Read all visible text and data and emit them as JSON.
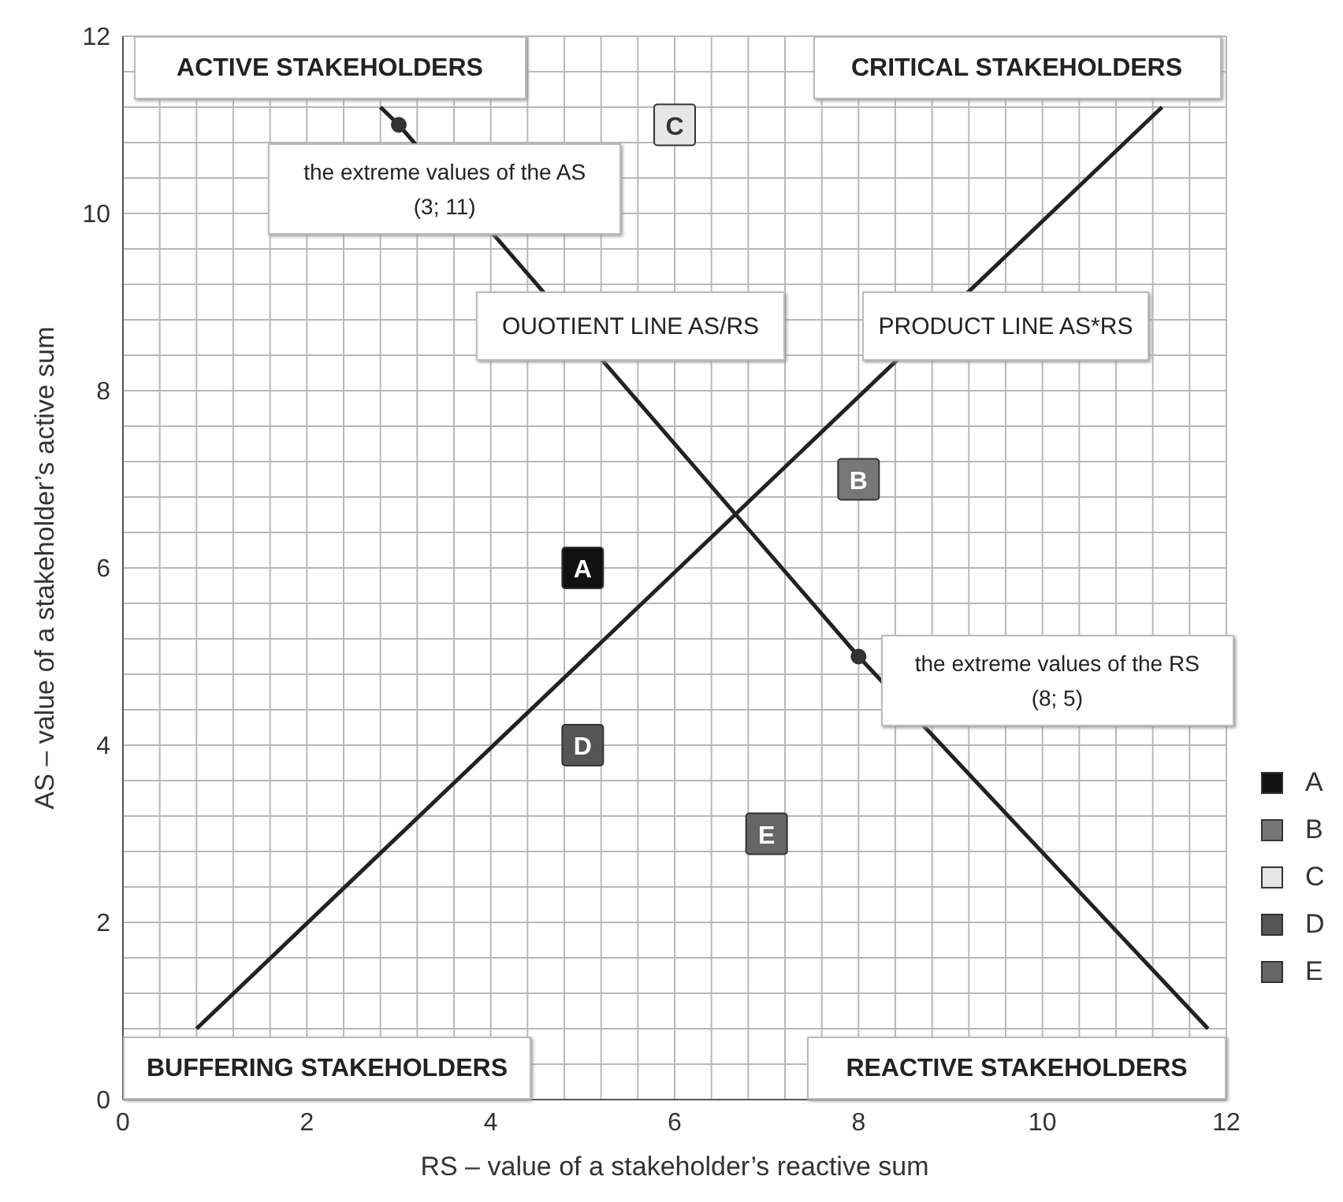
{
  "chart_data": {
    "type": "scatter",
    "xlabel": "RS – value of a stakeholder’s reactive sum",
    "ylabel": "AS – value of a stakeholder’s active sum",
    "xlim": [
      0,
      12
    ],
    "ylim": [
      0,
      12
    ],
    "xticks": [
      0,
      {
        "value": 0.4,
        "label": null
      },
      {
        "value": 0.8,
        "label": null
      },
      {
        "value": 1.2,
        "label": null
      },
      {
        "value": 1.6,
        "label": null
      },
      2,
      {
        "value": 2.4,
        "label": null
      },
      {
        "value": 2.8,
        "label": null
      },
      {
        "value": 3.2,
        "label": null
      },
      {
        "value": 3.6,
        "label": null
      },
      4,
      {
        "value": 4.4,
        "label": null
      },
      {
        "value": 4.8,
        "label": null
      },
      {
        "value": 5.2,
        "label": null
      },
      {
        "value": 5.6,
        "label": null
      },
      6,
      {
        "value": 6.4,
        "label": null
      },
      {
        "value": 6.8,
        "label": null
      },
      {
        "value": 7.2,
        "label": null
      },
      {
        "value": 7.6,
        "label": null
      },
      8,
      {
        "value": 8.4,
        "label": null
      },
      {
        "value": 8.8,
        "label": null
      },
      {
        "value": 9.2,
        "label": null
      },
      {
        "value": 9.6,
        "label": null
      },
      10,
      {
        "value": 10.4,
        "label": null
      },
      {
        "value": 10.8,
        "label": null
      },
      {
        "value": 11.2,
        "label": null
      },
      {
        "value": 11.6,
        "label": null
      },
      12
    ],
    "yticks": [
      0,
      {
        "value": 0.4,
        "label": null
      },
      {
        "value": 0.8,
        "label": null
      },
      {
        "value": 1.2,
        "label": null
      },
      {
        "value": 1.6,
        "label": null
      },
      2,
      {
        "value": 2.4,
        "label": null
      },
      {
        "value": 2.8,
        "label": null
      },
      {
        "value": 3.2,
        "label": null
      },
      {
        "value": 3.6,
        "label": null
      },
      4,
      {
        "value": 4.4,
        "label": null
      },
      {
        "value": 4.8,
        "label": null
      },
      {
        "value": 5.2,
        "label": null
      },
      {
        "value": 5.6,
        "label": null
      },
      6,
      {
        "value": 6.4,
        "label": null
      },
      {
        "value": 6.8,
        "label": null
      },
      {
        "value": 7.2,
        "label": null
      },
      {
        "value": 7.6,
        "label": null
      },
      8,
      {
        "value": 8.4,
        "label": null
      },
      {
        "value": 8.8,
        "label": null
      },
      {
        "value": 9.2,
        "label": null
      },
      {
        "value": 9.6,
        "label": null
      },
      10,
      {
        "value": 10.4,
        "label": null
      },
      {
        "value": 10.8,
        "label": null
      },
      {
        "value": 11.2,
        "label": null
      },
      {
        "value": 11.6,
        "label": null
      },
      12
    ],
    "grid": true,
    "legend": "right",
    "marker": "square",
    "series": [
      {
        "name": "A",
        "color": "#111111",
        "x": [
          5
        ],
        "values": [
          6
        ]
      },
      {
        "name": "B",
        "color": "#777777",
        "x": [
          8
        ],
        "values": [
          7
        ]
      },
      {
        "name": "C",
        "color": "#e6e6e6",
        "x": [
          6
        ],
        "values": [
          11
        ]
      },
      {
        "name": "D",
        "color": "#555555",
        "x": [
          5
        ],
        "values": [
          4
        ]
      },
      {
        "name": "E",
        "color": "#666666",
        "x": [
          7
        ],
        "values": [
          3
        ]
      },
      {
        "type": "line",
        "color": "#222222",
        "marker": "none",
        "x": [
          0.8,
          11.3
        ],
        "values": [
          0.8,
          11.2
        ]
      },
      {
        "type": "line",
        "color": "#222222",
        "marker": "none",
        "x": [
          2.8,
          3,
          8,
          11.8
        ],
        "values": [
          11.2,
          11,
          5,
          0.8
        ]
      },
      {
        "color": "#333333",
        "marker": "circle",
        "x": [
          3,
          8
        ],
        "values": [
          11,
          5
        ]
      }
    ],
    "annotations": [
      "ACTIVE STAKEHOLDERS",
      "CRITICAL STAKEHOLDERS",
      "BUFFERING STAKEHOLDERS",
      "REACTIVE STAKEHOLDERS",
      "OUOTIENT LINE AS/RS",
      "PRODUCT LINE AS*RS",
      {
        "text": "the extreme values of the AS\n(3; 11)",
        "x": 3,
        "y": 11
      },
      {
        "text": "the extreme values of the RS\n(8; 5)",
        "x": 8,
        "y": 5
      }
    ]
  }
}
